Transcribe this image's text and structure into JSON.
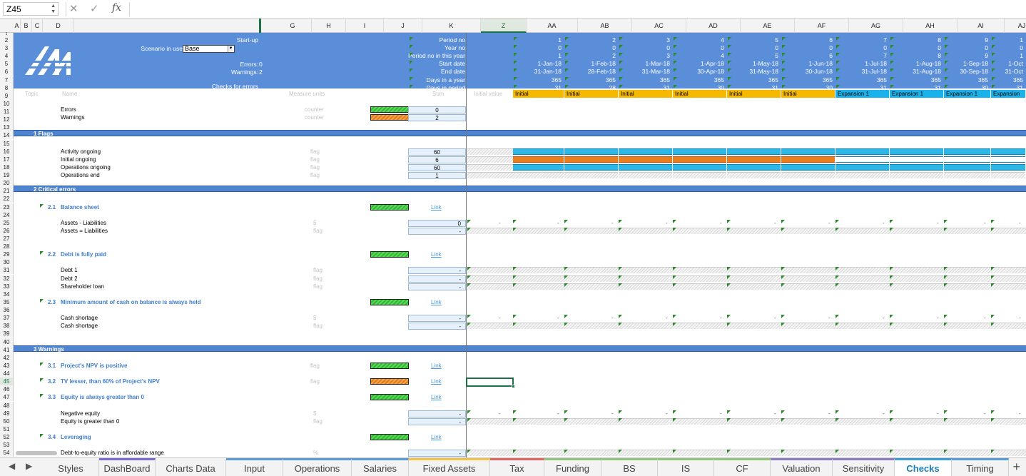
{
  "name_box": "Z45",
  "formula_bar": {
    "fx_label": "fx",
    "content": ""
  },
  "columns": [
    "A",
    "B",
    "C",
    "D",
    "G",
    "H",
    "I",
    "J",
    "K",
    "Z",
    "AA",
    "AB",
    "AC",
    "AD",
    "AE",
    "AF",
    "AG",
    "AH",
    "AI",
    "AJ"
  ],
  "selected_column": "Z",
  "selected_row": "45",
  "rows": [
    "1",
    "2",
    "3",
    "4",
    "5",
    "6",
    "7",
    "8",
    "9",
    "10",
    "11",
    "12",
    "13",
    "14",
    "15",
    "16",
    "17",
    "18",
    "19",
    "20",
    "21",
    "22",
    "23",
    "24",
    "25",
    "26",
    "27",
    "28",
    "29",
    "30",
    "31",
    "32",
    "33",
    "34",
    "35",
    "36",
    "37",
    "38",
    "39",
    "40",
    "41",
    "42",
    "43",
    "44",
    "45",
    "46",
    "47",
    "48",
    "49",
    "50",
    "51",
    "52",
    "53",
    "54"
  ],
  "header": {
    "start_up": "Start-up",
    "scenario_label": "Scenario in use",
    "scenario_value": "Base",
    "errors_label": "Errors:",
    "errors_value": "0",
    "warnings_label": "Warnings:",
    "warnings_value": "2",
    "checks_label": "Checks for errors",
    "row_labels": [
      "Period no",
      "Year no",
      "Period no in this year",
      "Start date",
      "End date",
      "Days in a year",
      "Days in period"
    ],
    "col_labels": {
      "topic": "Topic",
      "name": "Name",
      "units": "Measure units",
      "sum": "Sum",
      "initial": "Initial value"
    }
  },
  "periods": [
    {
      "col": "AA",
      "period": "1",
      "year": "0",
      "pin": "1",
      "start": "1-Jan-18",
      "end": "31-Jan-18",
      "diy": "365",
      "dip": "31",
      "phase": "Initial"
    },
    {
      "col": "AB",
      "period": "2",
      "year": "0",
      "pin": "2",
      "start": "1-Feb-18",
      "end": "28-Feb-18",
      "diy": "365",
      "dip": "28",
      "phase": "Initial"
    },
    {
      "col": "AC",
      "period": "3",
      "year": "0",
      "pin": "3",
      "start": "1-Mar-18",
      "end": "31-Mar-18",
      "diy": "365",
      "dip": "31",
      "phase": "Initial"
    },
    {
      "col": "AD",
      "period": "4",
      "year": "0",
      "pin": "4",
      "start": "1-Apr-18",
      "end": "30-Apr-18",
      "diy": "365",
      "dip": "30",
      "phase": "Initial"
    },
    {
      "col": "AE",
      "period": "5",
      "year": "0",
      "pin": "5",
      "start": "1-May-18",
      "end": "31-May-18",
      "diy": "365",
      "dip": "31",
      "phase": "Initial"
    },
    {
      "col": "AF",
      "period": "6",
      "year": "0",
      "pin": "6",
      "start": "1-Jun-18",
      "end": "30-Jun-18",
      "diy": "365",
      "dip": "30",
      "phase": "Initial"
    },
    {
      "col": "AG",
      "period": "7",
      "year": "0",
      "pin": "7",
      "start": "1-Jul-18",
      "end": "31-Jul-18",
      "diy": "365",
      "dip": "31",
      "phase": "Expansion 1"
    },
    {
      "col": "AH",
      "period": "8",
      "year": "0",
      "pin": "8",
      "start": "1-Aug-18",
      "end": "31-Aug-18",
      "diy": "365",
      "dip": "31",
      "phase": "Expansion 1"
    },
    {
      "col": "AI",
      "period": "9",
      "year": "0",
      "pin": "9",
      "start": "1-Sep-18",
      "end": "30-Sep-18",
      "diy": "365",
      "dip": "30",
      "phase": "Expansion 1"
    },
    {
      "col": "AJ",
      "period": "1",
      "year": "0",
      "pin": "1",
      "start": "1-Oct",
      "end": "31-Oct",
      "diy": "365",
      "dip": "31",
      "phase": "Expansion"
    }
  ],
  "checks": {
    "errors": {
      "name": "Errors",
      "units": "counter",
      "sum": "0"
    },
    "warnings": {
      "name": "Warnings",
      "units": "counter",
      "sum": "2"
    }
  },
  "sections": {
    "flags": "1  Flags",
    "critical": "2  Critical errors",
    "warnings": "3  Warnings"
  },
  "flags": [
    {
      "name": "Activity ongoing",
      "units": "flag",
      "sum": "60"
    },
    {
      "name": "Initial ongoing",
      "units": "flag",
      "sum": "6"
    },
    {
      "name": "Operations ongoing",
      "units": "flag",
      "sum": "60"
    },
    {
      "name": "Operations end",
      "units": "flag",
      "sum": "1"
    }
  ],
  "sub": {
    "s21": {
      "num": "2.1",
      "title": "Balance sheet",
      "link": "Link"
    },
    "s22": {
      "num": "2.2",
      "title": "Debt is fully paid",
      "link": "Link"
    },
    "s23": {
      "num": "2.3",
      "title": "Minimum amount of cash on balance is always held",
      "link": "Link"
    },
    "s31": {
      "num": "3.1",
      "title": "Project's NPV is positive",
      "link": "Link",
      "units": "flag"
    },
    "s32": {
      "num": "3.2",
      "title": "TV lesser, than 60% of Project's NPV",
      "link": "Link",
      "units": "flag"
    },
    "s33": {
      "num": "3.3",
      "title": "Equity is always greater than 0",
      "link": "Link"
    },
    "s34": {
      "num": "3.4",
      "title": "Leveraging",
      "link": "Link"
    }
  },
  "lines": {
    "bs1": {
      "name": "Assets - Liabilities",
      "units": "$",
      "sum": "0"
    },
    "bs2": {
      "name": "Assets = Liabilities",
      "units": "flag",
      "sum": "-"
    },
    "d1": {
      "name": "Debt 1",
      "units": "flag",
      "sum": "-"
    },
    "d2": {
      "name": "Debt 2",
      "units": "flag",
      "sum": "-"
    },
    "d3": {
      "name": "Shareholder loan",
      "units": "flag",
      "sum": "-"
    },
    "c1": {
      "name": "Cash shortage",
      "units": "$",
      "sum": "-"
    },
    "c2": {
      "name": "Cash shortage",
      "units": "flag",
      "sum": "-"
    },
    "e1": {
      "name": "Negative equity",
      "units": "$",
      "sum": "-"
    },
    "e2": {
      "name": "Equity is greater than 0",
      "units": "flag",
      "sum": "-"
    },
    "l1": {
      "name": "Debt-to-equity ratio is in affordable range",
      "units": "%",
      "sum": "-"
    }
  },
  "dash": "-",
  "tabs": [
    "Styles",
    "DashBoard",
    "Charts Data",
    "Input",
    "Operations",
    "Salaries",
    "Fixed Assets",
    "Tax",
    "Funding",
    "BS",
    "IS",
    "CF",
    "Valuation",
    "Sensitivity",
    "Checks",
    "Timing"
  ],
  "active_tab": "Checks",
  "tab_colors": [
    "#f3f3f3",
    "#7b6bd1",
    "#f3f3f3",
    "#5b9bd5",
    "#5b9bd5",
    "#5b9bd5",
    "#f0c14b",
    "#e06666",
    "#93c47d",
    "#93c47d",
    "#93c47d",
    "#93c47d",
    "#8e7cc3",
    "#8e7cc3",
    "#3a9bd6",
    "#5b9bd5"
  ],
  "colors": {
    "band": "#4f84d1",
    "header": "#5b8ed9",
    "initial": "#f6b900",
    "expansion": "#1ab2ea",
    "ok": "#3ec93e",
    "warn": "#ed8a2c"
  }
}
